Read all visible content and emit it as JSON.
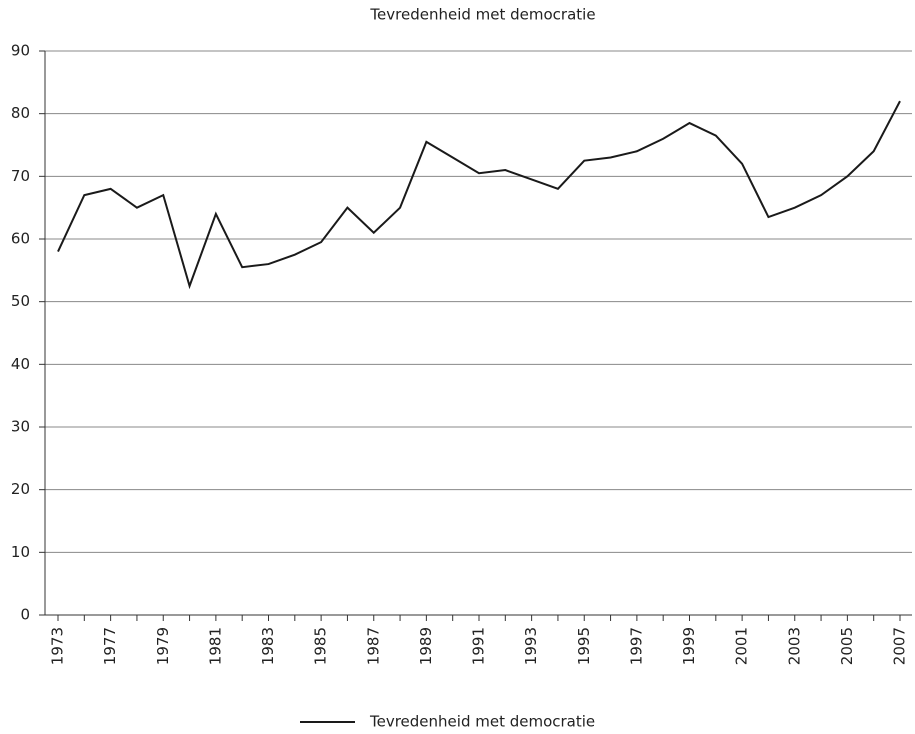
{
  "chart_data": {
    "type": "line",
    "title": "Tevredenheid met democratie",
    "categories": [
      "1973",
      null,
      "1977",
      null,
      "1979",
      null,
      "1981",
      null,
      "1983",
      null,
      "1985",
      null,
      "1987",
      null,
      "1989",
      null,
      "1991",
      null,
      "1993",
      null,
      "1995",
      null,
      "1997",
      null,
      "1999",
      null,
      "2001",
      null,
      "2003",
      null,
      "2005",
      null,
      "2007"
    ],
    "series": [
      {
        "name": "Tevredenheid met democratie",
        "color": "#1a1a1a",
        "values": [
          58,
          67,
          68,
          65,
          67,
          52.5,
          64,
          55.5,
          56,
          57.5,
          59.5,
          65,
          61,
          65,
          75.5,
          73,
          70.5,
          71,
          69.5,
          68,
          72.5,
          73,
          74,
          76,
          78.5,
          76.5,
          72,
          63.5,
          65,
          67,
          70,
          74,
          82
        ]
      }
    ],
    "ylim": [
      0,
      90
    ],
    "yticks": [
      0,
      10,
      20,
      30,
      40,
      50,
      60,
      70,
      80,
      90
    ],
    "grid": true,
    "legend": "bottom"
  }
}
